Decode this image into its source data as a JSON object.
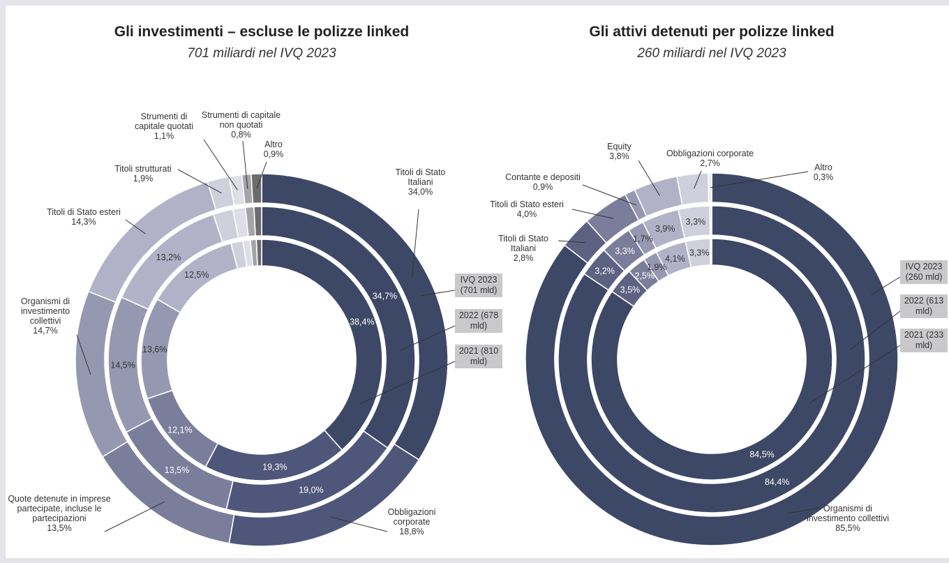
{
  "chart_data": [
    {
      "type": "donut",
      "title": "Gli investimenti – escluse le polizze linked",
      "subtitle": "701 miliardi nel IVQ 2023",
      "categories": [
        "Titoli di Stato Italiani",
        "Obbligazioni corporate",
        "Quote detenute in imprese partecipate, incluse le partecipazioni",
        "Organismi di investimento collettivi",
        "Titoli di Stato esteri",
        "Titoli strutturati",
        "Strumenti di capitale quotati",
        "Strumenti di capitale non quotati",
        "Altro"
      ],
      "colors": [
        "#3d4866",
        "#4e5679",
        "#7b7e9b",
        "#9698b1",
        "#b1b2c7",
        "#cfd0dc",
        "#dddee7",
        "#a3a3a8",
        "#6c6c70"
      ],
      "series": [
        {
          "name": "IVQ 2023 (701 mld)",
          "values": [
            34.0,
            18.8,
            13.5,
            14.7,
            14.3,
            1.9,
            1.1,
            0.8,
            0.9
          ],
          "value_labels": [
            "34,0%",
            "18,8%",
            "13,5%",
            "14,7%",
            "14,3%",
            "1,9%",
            "1,1%",
            "0,8%",
            "0,9%"
          ]
        },
        {
          "name": "2022 (678 mld)",
          "values": [
            34.7,
            19.0,
            13.5,
            14.5,
            13.2,
            2.1,
            1.3,
            0.9,
            0.8
          ],
          "value_labels": [
            "34,7%",
            "19,0%",
            "13,5%",
            "14,5%",
            "13,2%",
            null,
            null,
            null,
            null
          ]
        },
        {
          "name": "2021 (810 mld)",
          "values": [
            38.4,
            19.3,
            12.1,
            13.6,
            12.5,
            1.6,
            1.0,
            0.8,
            0.7
          ],
          "value_labels": [
            "38,4%",
            "19,3%",
            "12,1%",
            "13,6%",
            "12,5%",
            null,
            null,
            null,
            null
          ]
        }
      ]
    },
    {
      "type": "donut",
      "title": "Gli attivi detenuti per polizze linked",
      "subtitle": "260 miliardi nel IVQ 2023",
      "categories": [
        "Organismi di investimento collettivi",
        "Titoli di Stato Italiani",
        "Titoli di Stato esteri",
        "Contante e depositi",
        "Equity",
        "Obbligazioni corporate",
        "Altro"
      ],
      "colors": [
        "#3d4866",
        "#5d6283",
        "#7b7e9b",
        "#9698b1",
        "#b1b2c7",
        "#cfd0dc",
        "#ececf2"
      ],
      "series": [
        {
          "name": "IVQ 2023 (260 mld)",
          "values": [
            85.5,
            2.8,
            4.0,
            0.9,
            3.8,
            2.7,
            0.3
          ],
          "value_labels": [
            "85,5%",
            "2,8%",
            "4,0%",
            "0,9%",
            "3,8%",
            "2,7%",
            "0,3%"
          ]
        },
        {
          "name": "2022 (613 mld)",
          "values": [
            84.4,
            3.2,
            3.3,
            1.7,
            3.9,
            3.3,
            0.2
          ],
          "value_labels": [
            "84,4%",
            "3,2%",
            "3,3%",
            "1,7%",
            "3,9%",
            "3,3%",
            null
          ]
        },
        {
          "name": "2021 (233 mld)",
          "values": [
            84.5,
            3.5,
            2.5,
            1.9,
            4.1,
            3.3,
            0.2
          ],
          "value_labels": [
            "84,5%",
            "3,5%",
            "2,5%",
            "1,9%",
            "4,1%",
            "3,3%",
            null
          ]
        }
      ]
    }
  ]
}
